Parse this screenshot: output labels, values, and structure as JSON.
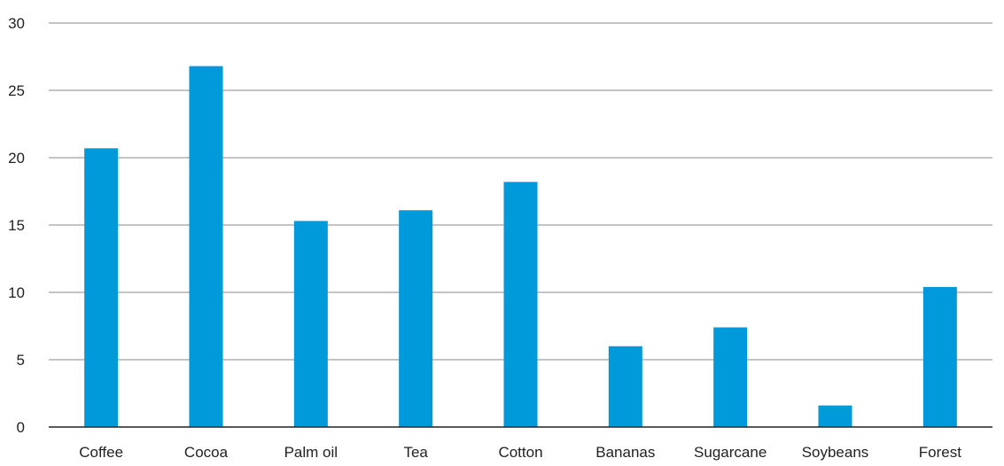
{
  "chart_data": {
    "type": "bar",
    "title": "",
    "xlabel": "",
    "ylabel": "",
    "categories": [
      "Coffee",
      "Cocoa",
      "Palm oil",
      "Tea",
      "Cotton",
      "Bananas",
      "Sugarcane",
      "Soybeans",
      "Forest"
    ],
    "values": [
      20.7,
      26.8,
      15.3,
      16.1,
      18.2,
      6.0,
      7.4,
      1.6,
      10.4
    ],
    "ylim": [
      0,
      30
    ],
    "yticks": [
      0,
      5,
      10,
      15,
      20,
      25,
      30
    ],
    "grid": true,
    "legend": "none",
    "bar_color": "#009ADA",
    "grid_color": "#8a8a8a",
    "axis_color": "#222222"
  }
}
